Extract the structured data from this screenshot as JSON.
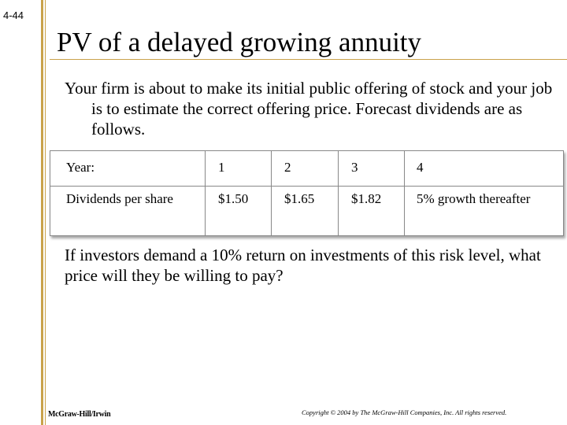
{
  "slide_number": "4-44",
  "title": "PV of a delayed growing annuity",
  "intro": "Your firm is about to make its initial public offering of stock and your job is to estimate the correct offering price. Forecast dividends are as follows.",
  "table": {
    "header_row": [
      "Year:",
      "1",
      "2",
      "3",
      "4"
    ],
    "dividend_row": [
      "Dividends per share",
      "$1.50",
      "$1.65",
      "$1.82",
      "5% growth thereafter"
    ]
  },
  "question": "If investors demand a 10% return on investments of this risk level, what price will they be willing to pay?",
  "footer": {
    "publisher": "McGraw-Hill/Irwin",
    "copyright": "Copyright © 2004 by The McGraw-Hill Companies, Inc.  All rights reserved."
  },
  "colors": {
    "accent_rule": "#c9a24a",
    "table_border": "#888888"
  }
}
